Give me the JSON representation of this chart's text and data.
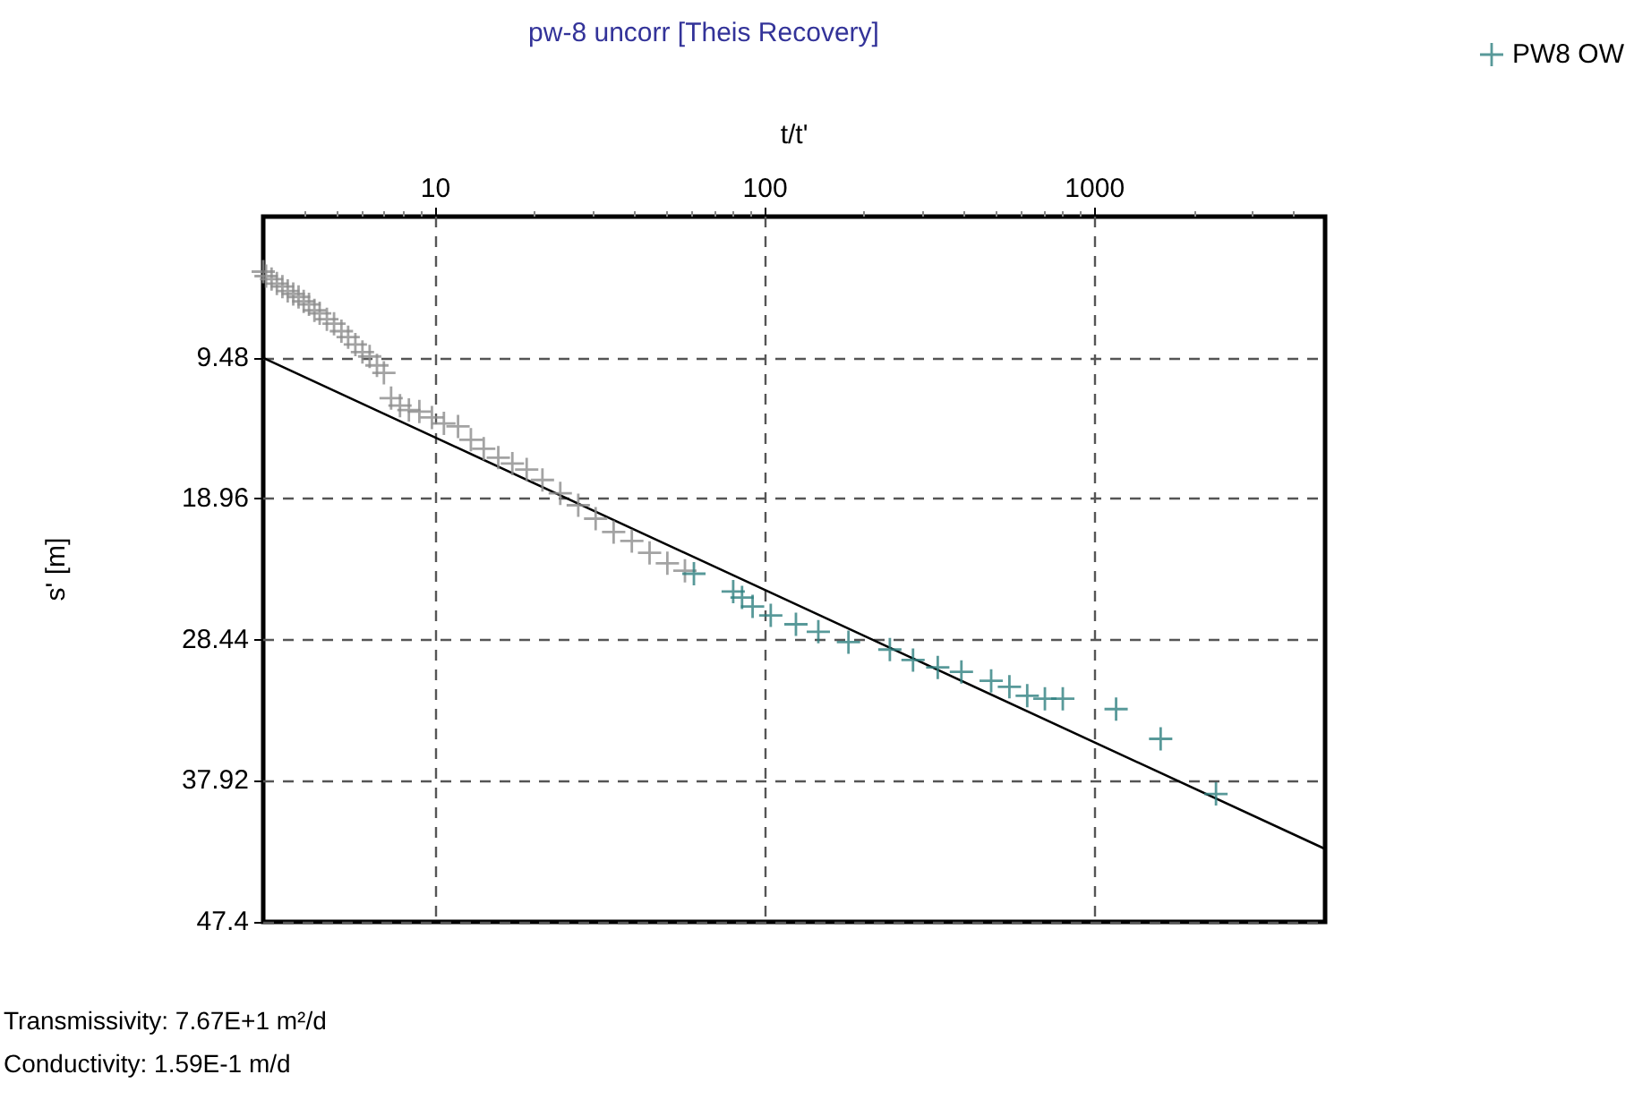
{
  "chart_data": {
    "type": "scatter",
    "title": "pw-8 uncorr [Theis Recovery]",
    "xlabel": "t/t'",
    "ylabel": "s' [m]",
    "log": "x",
    "xlim": [
      3,
      5000
    ],
    "xticks": [
      10,
      100,
      1000
    ],
    "ylim": [
      47.4,
      0
    ],
    "yticks": [
      9.48,
      18.96,
      28.44,
      37.92,
      47.4
    ],
    "grid": true,
    "legend": "top right",
    "marker": "cross",
    "annotations": [
      "Transmissivity: 7.67E+1 m²/d",
      "Conductivity: 1.59E-1 m/d"
    ],
    "series": [
      {
        "color": "#8c8c8c",
        "x": [
          3.0,
          3.06,
          3.18,
          3.3,
          3.43,
          3.56,
          3.7,
          3.84,
          3.98,
          4.13,
          4.29,
          4.45,
          4.68,
          4.92,
          5.18,
          5.43,
          5.71,
          6.0,
          6.31,
          6.64,
          6.97,
          7.33,
          7.8,
          8.3,
          8.93,
          9.75,
          10.6,
          11.7,
          12.8,
          14.0,
          15.5,
          17.1,
          18.9,
          21.1,
          23.9,
          27.1,
          30.6,
          34.7,
          39.4,
          44.6,
          50.5,
          57.1
        ],
        "values": [
          3.7,
          4.0,
          4.2,
          4.5,
          4.7,
          5.0,
          5.2,
          5.4,
          5.7,
          5.9,
          6.3,
          6.5,
          6.9,
          7.2,
          7.7,
          8.1,
          8.6,
          9.1,
          9.4,
          10.0,
          10.5,
          12.2,
          12.7,
          13.0,
          13.1,
          13.5,
          13.9,
          14.1,
          15.0,
          15.6,
          16.2,
          16.6,
          17.0,
          17.7,
          18.6,
          19.4,
          20.3,
          21.2,
          21.8,
          22.6,
          23.3,
          23.8
        ]
      },
      {
        "name": "PW8 OW",
        "color": "#2e7f7f",
        "x": [
          60.8,
          80.0,
          85.1,
          91.6,
          104,
          124,
          145,
          179,
          239,
          281,
          334,
          394,
          485,
          551,
          624,
          706,
          800,
          1161,
          1585,
          2333
        ],
        "values": [
          24.0,
          25.2,
          25.6,
          26.2,
          26.8,
          27.4,
          27.9,
          28.6,
          29.1,
          29.8,
          30.3,
          30.6,
          31.2,
          31.6,
          32.2,
          32.4,
          32.4,
          33.1,
          35.1,
          38.8
        ]
      },
      {
        "type": "line",
        "color": "#000000",
        "line_style": "solid",
        "marker": "none",
        "x": [
          3,
          5000
        ],
        "values": [
          9.5,
          42.5
        ]
      }
    ]
  }
}
